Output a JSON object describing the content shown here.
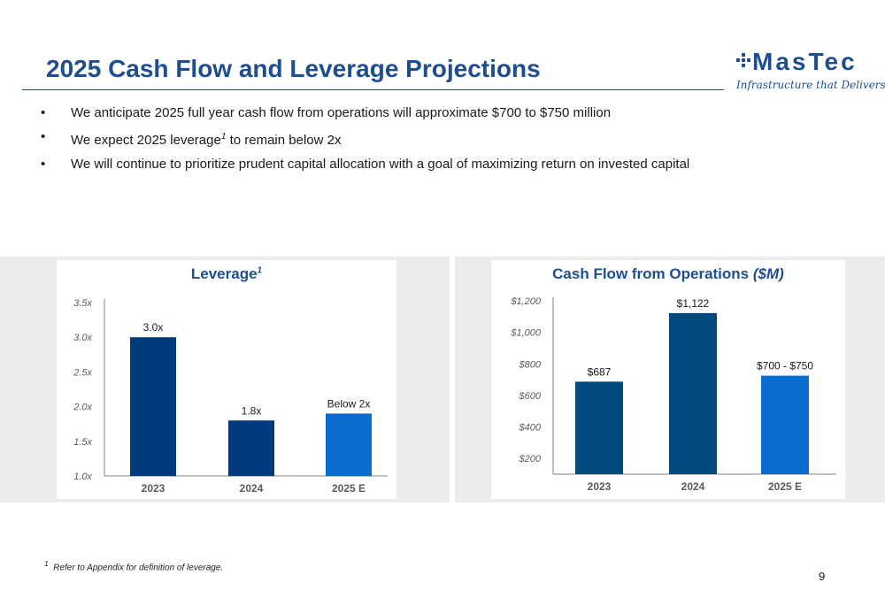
{
  "title": "2025 Cash Flow and Leverage Projections",
  "logo": {
    "wordmark": "MasTec",
    "tagline": "Infrastructure that Delivers",
    "brand_color": "#1f4e8f"
  },
  "bullets": [
    {
      "text": "We anticipate 2025 full year cash flow from operations will approximate $700 to $750 million"
    },
    {
      "pre": "We expect 2025 leverage",
      "sup": "1",
      "post": " to remain below 2x"
    },
    {
      "text": "We will continue to prioritize prudent capital allocation with a goal of maximizing return on invested capital"
    }
  ],
  "bullet_char": "•",
  "charts": {
    "leverage_title": "Leverage",
    "leverage_title_sup": "1",
    "cash_title": "Cash Flow from Operations",
    "cash_title_unit": "($M)"
  },
  "chart_data": [
    {
      "type": "bar",
      "title": "Leverage",
      "categories": [
        "2023",
        "2024",
        "2025 E"
      ],
      "values": [
        3.0,
        1.8,
        1.9
      ],
      "data_labels": [
        "3.0x",
        "1.8x",
        "Below 2x"
      ],
      "ylim": [
        1.0,
        3.5
      ],
      "yticks": [
        1.0,
        1.5,
        2.0,
        2.5,
        3.0,
        3.5
      ],
      "ytick_labels": [
        "1.0x",
        "1.5x",
        "2.0x",
        "2.5x",
        "3.0x",
        "3.5x"
      ],
      "colors": [
        "#003a7d",
        "#003a7d",
        "#0a6ccf"
      ],
      "grid": false
    },
    {
      "type": "bar",
      "title": "Cash Flow from Operations ($M)",
      "categories": [
        "2023",
        "2024",
        "2025 E"
      ],
      "values": [
        687,
        1122,
        725
      ],
      "data_labels": [
        "$687",
        "$1,122",
        "$700 - $750"
      ],
      "ylim": [
        100,
        1200
      ],
      "yticks": [
        200,
        400,
        600,
        800,
        1000,
        1200
      ],
      "ytick_labels": [
        "$200",
        "$400",
        "$600",
        "$800",
        "$1,000",
        "$1,200"
      ],
      "colors": [
        "#004a80",
        "#004a80",
        "#0a6ccf"
      ],
      "grid": false
    }
  ],
  "footnote": {
    "sup": "1",
    "text": "Refer to Appendix for definition of leverage."
  },
  "page_number": "9"
}
